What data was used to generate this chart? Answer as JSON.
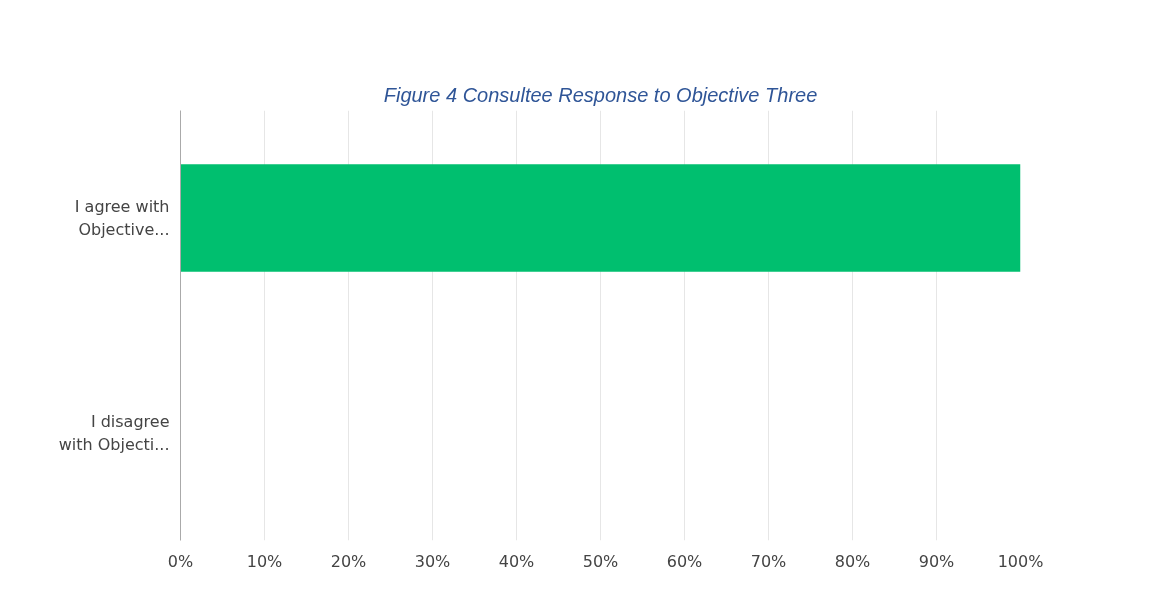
{
  "chart_data": {
    "type": "bar",
    "orientation": "horizontal",
    "title": "Figure 4 Consultee Response to Objective Three",
    "categories": [
      "I agree with\nObjective...",
      "I disagree\nwith Objecti..."
    ],
    "values": [
      100,
      0
    ],
    "color": "#00bf6f",
    "xlim": [
      0,
      100
    ],
    "xticks": [
      {
        "value": 0,
        "label": "0%"
      },
      {
        "value": 10,
        "label": "10%"
      },
      {
        "value": 20,
        "label": "20%"
      },
      {
        "value": 30,
        "label": "30%"
      },
      {
        "value": 40,
        "label": "40%"
      },
      {
        "value": 50,
        "label": "50%"
      },
      {
        "value": 60,
        "label": "60%"
      },
      {
        "value": 70,
        "label": "70%"
      },
      {
        "value": 80,
        "label": "80%"
      },
      {
        "value": 90,
        "label": "90%"
      },
      {
        "value": 100,
        "label": "100%"
      }
    ],
    "grid": "x"
  }
}
